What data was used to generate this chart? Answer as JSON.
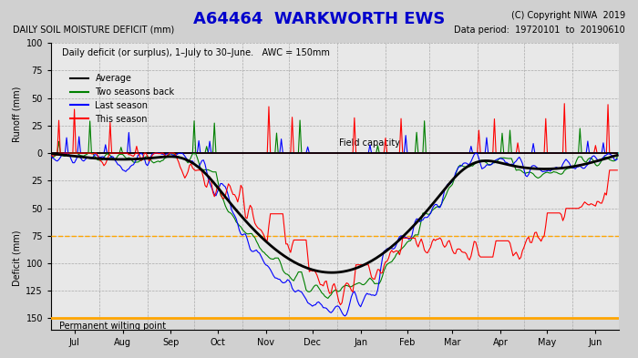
{
  "title": "A64464  WARKWORTH EWS",
  "copyright": "(C) Copyright NIWA  2019",
  "data_period": "Data period:  19720101  to  20190610",
  "ylabel_top": "Runoff (mm)",
  "ylabel_bottom": "Deficit (mm)",
  "xlabel_top": "DAILY SOIL MOISTURE DEFICIT (mm)",
  "subtitle": "Daily deficit (or surplus), 1–July to 30–June.   AWC = 150mm",
  "field_capacity_label": "Field capacity",
  "pwp_label": "Permanent wilting point",
  "pwp_value": 150,
  "dashed_line_value": 75,
  "awc": 150,
  "runoff_max": 100,
  "runoff_min": -10,
  "deficit_max": -10,
  "deficit_min": 160,
  "colors": {
    "average": "#000000",
    "two_back": "#008000",
    "last": "#0000FF",
    "this": "#FF0000",
    "field_cap": "#00CCAA",
    "pwp": "#FFA500",
    "dashed": "#FFA500",
    "background": "#E8E8E8",
    "grid": "#AAAAAA"
  },
  "legend": [
    "Average",
    "Two seasons back",
    "Last season",
    "This season"
  ],
  "months": [
    "Jul",
    "Aug",
    "Sep",
    "Oct",
    "Nov",
    "Dec",
    "Jan",
    "Feb",
    "Mar",
    "Apr",
    "May",
    "Jun"
  ]
}
